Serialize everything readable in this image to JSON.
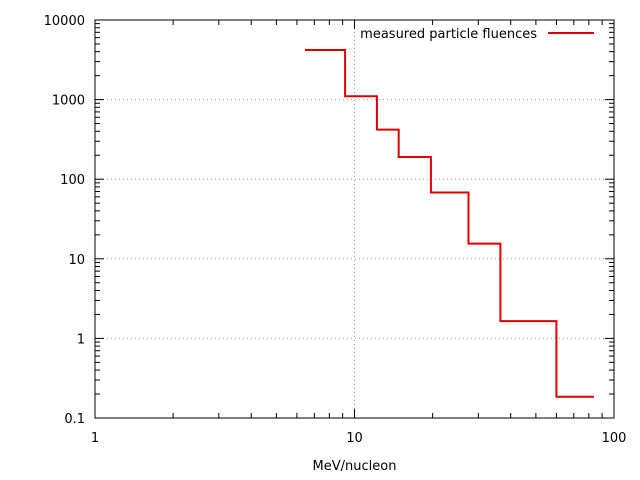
{
  "chart_data": {
    "type": "line",
    "step": true,
    "xlabel": "MeV/nucleon",
    "ylabel": "",
    "xscale": "log",
    "yscale": "log",
    "xlim": [
      1,
      100
    ],
    "ylim": [
      0.1,
      10000
    ],
    "x_ticks": [
      {
        "value": 1,
        "label": "1"
      },
      {
        "value": 10,
        "label": "10"
      },
      {
        "value": 100,
        "label": "100"
      }
    ],
    "y_ticks": [
      {
        "value": 0.1,
        "label": "0.1"
      },
      {
        "value": 1,
        "label": "1"
      },
      {
        "value": 10,
        "label": "10"
      },
      {
        "value": 100,
        "label": "100"
      },
      {
        "value": 1000,
        "label": "1000"
      },
      {
        "value": 10000,
        "label": "10000"
      }
    ],
    "grid": true,
    "legend_position": "top-right",
    "series": [
      {
        "name": "measured particle fluences",
        "color": "#dd0000",
        "bins": [
          {
            "x_start": 6.5,
            "x_end": 9.2,
            "y": 4200
          },
          {
            "x_start": 9.2,
            "x_end": 12.2,
            "y": 1100
          },
          {
            "x_start": 12.2,
            "x_end": 14.8,
            "y": 420
          },
          {
            "x_start": 14.8,
            "x_end": 19.7,
            "y": 190
          },
          {
            "x_start": 19.7,
            "x_end": 27.5,
            "y": 68
          },
          {
            "x_start": 27.5,
            "x_end": 36.5,
            "y": 15.5
          },
          {
            "x_start": 36.5,
            "x_end": 60,
            "y": 1.65
          },
          {
            "x_start": 60,
            "x_end": 83,
            "y": 0.185
          }
        ]
      }
    ]
  }
}
